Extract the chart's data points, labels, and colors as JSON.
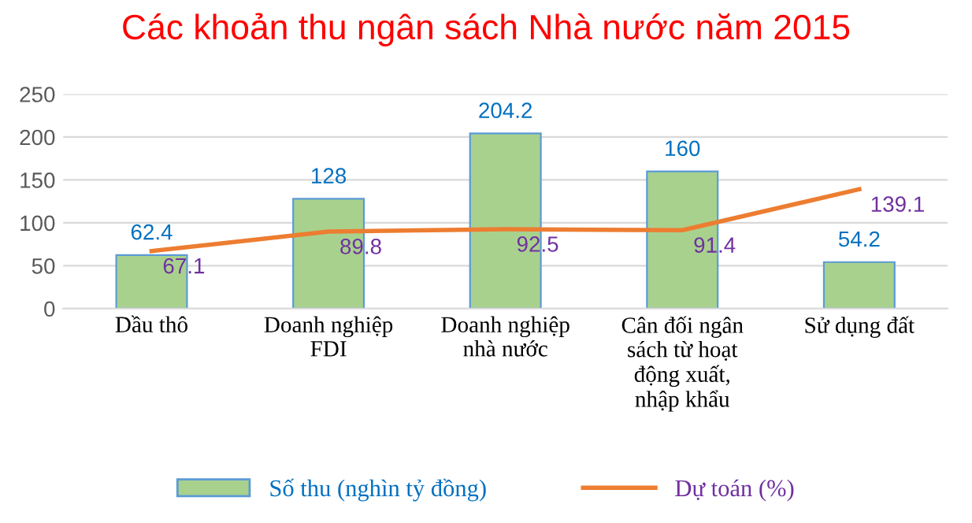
{
  "chart_data": {
    "type": "bar",
    "title": "Các khoản thu ngân sách Nhà nước năm 2015",
    "categories": [
      "Dầu thô",
      "Doanh nghiệp\nFDI",
      "Doanh nghiệp\nnhà nước",
      "Cân đối ngân\nsách từ hoạt\nđộng xuất,\nnhập khẩu",
      "Sử dụng đất"
    ],
    "series": [
      {
        "name": "Số thu (nghìn tỷ đồng)",
        "color": "#a9d18e",
        "values": [
          62.4,
          128,
          204.2,
          160,
          54.2
        ]
      },
      {
        "name": "Dự toán (%)",
        "type": "line",
        "color": "#ed7d31",
        "values": [
          67.1,
          89.8,
          92.5,
          91.4,
          139.1
        ]
      }
    ],
    "ylim": [
      0,
      250
    ],
    "yticks": [
      0,
      50,
      100,
      150,
      200,
      250
    ],
    "grid": "y",
    "legend": "bottom",
    "data_labels": true
  }
}
